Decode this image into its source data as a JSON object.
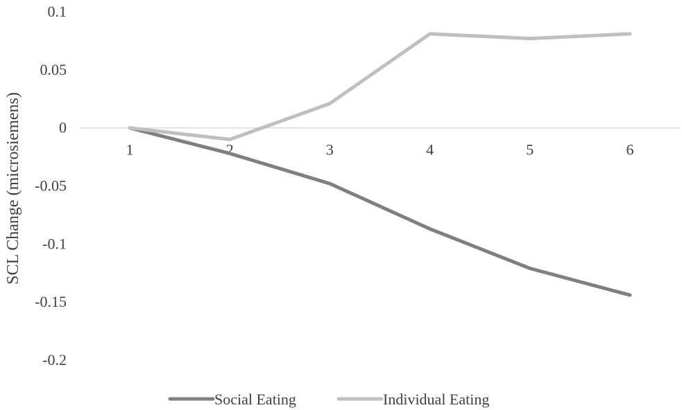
{
  "chart_data": {
    "type": "line",
    "title": "",
    "xlabel": "",
    "ylabel": "SCL Change (microsiemens)",
    "categories": [
      "1",
      "2",
      "3",
      "4",
      "5",
      "6"
    ],
    "ylim": [
      -0.2,
      0.1
    ],
    "yticks": [
      "0.1",
      "0.05",
      "0",
      "-0.05",
      "-0.1",
      "-0.15",
      "-0.2"
    ],
    "ytick_values": [
      0.1,
      0.05,
      0,
      -0.05,
      -0.1,
      -0.15,
      -0.2
    ],
    "grid": false,
    "legend_position": "bottom",
    "series": [
      {
        "name": "Social Eating",
        "color": "#7f7f7f",
        "values": [
          0,
          -0.022,
          -0.048,
          -0.087,
          -0.121,
          -0.144
        ]
      },
      {
        "name": "Individual Eating",
        "color": "#bfbfbf",
        "values": [
          0,
          -0.01,
          0.021,
          0.081,
          0.077,
          0.081
        ]
      }
    ]
  }
}
